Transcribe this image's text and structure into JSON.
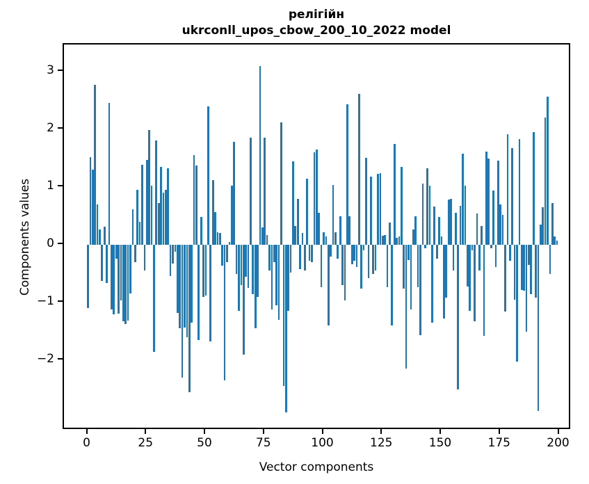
{
  "figure": {
    "title_line1": "релігійн",
    "title_line2": "ukrconll_upos_cbow_200_10_2022 model"
  },
  "chart_data": {
    "type": "bar",
    "title": "релігійн\nukrconll_upos_cbow_200_10_2022 model",
    "xlabel": "Vector components",
    "ylabel": "Components values",
    "bar_color": "#1f77b4",
    "grid": false,
    "legend": null,
    "x_description": "vector component index 0-199",
    "xticks": [
      0,
      25,
      50,
      75,
      100,
      125,
      150,
      175,
      200
    ],
    "yticks": [
      3,
      2,
      1,
      0,
      -1,
      -2
    ],
    "xlim": [
      -10.5,
      210.5
    ],
    "ylim": [
      -3.22,
      3.47
    ],
    "values": [
      -1.1,
      1.52,
      1.3,
      2.77,
      0.7,
      0.26,
      -0.63,
      0.31,
      -0.66,
      2.46,
      -1.12,
      -1.2,
      -0.24,
      -1.19,
      -0.96,
      -1.33,
      -1.37,
      -1.31,
      -0.84,
      0.62,
      -0.3,
      0.95,
      0.4,
      1.38,
      -0.45,
      1.47,
      1.99,
      1.02,
      -1.85,
      1.81,
      0.72,
      1.35,
      0.9,
      0.95,
      1.33,
      -0.54,
      -0.32,
      -0.12,
      -1.18,
      -1.45,
      -2.3,
      -1.43,
      -1.6,
      -2.55,
      -1.35,
      1.55,
      1.37,
      -1.65,
      0.48,
      -0.9,
      -0.88,
      2.4,
      -1.67,
      1.12,
      0.57,
      0.22,
      0.2,
      -0.36,
      -2.35,
      -0.3,
      0.05,
      1.02,
      1.78,
      -0.5,
      -1.15,
      -0.7,
      -1.9,
      -0.55,
      -0.75,
      1.85,
      -0.85,
      -1.45,
      -0.9,
      3.1,
      0.3,
      1.86,
      0.17,
      -0.45,
      -1.12,
      -0.3,
      -1.05,
      -1.3,
      2.12,
      -2.45,
      -2.9,
      -1.15,
      -0.48,
      1.45,
      0.32,
      0.79,
      -0.42,
      0.2,
      -0.44,
      1.14,
      -0.28,
      -0.3,
      1.6,
      1.65,
      0.56,
      -0.74,
      0.22,
      0.14,
      -1.4,
      -0.2,
      1.04,
      0.22,
      -0.24,
      0.5,
      -0.7,
      -0.96,
      2.43,
      0.49,
      -0.34,
      -0.28,
      -0.38,
      2.61,
      -0.76,
      -0.1,
      1.51,
      -0.58,
      1.18,
      -0.5,
      -0.44,
      1.23,
      1.24,
      0.16,
      0.17,
      -0.74,
      0.38,
      -1.4,
      1.75,
      0.12,
      0.15,
      1.35,
      -0.76,
      -2.15,
      -0.26,
      -1.12,
      0.26,
      0.5,
      -0.74,
      -1.57,
      1.06,
      -0.06,
      1.33,
      1.02,
      -1.35,
      0.66,
      -0.24,
      0.48,
      0.14,
      -1.28,
      -0.92,
      0.78,
      0.8,
      -0.45,
      0.56,
      -2.5,
      0.68,
      1.58,
      1.02,
      -0.72,
      -1.15,
      -0.1,
      -1.32,
      0.54,
      -0.44,
      0.32,
      -1.58,
      1.62,
      1.5,
      -0.06,
      0.94,
      -0.38,
      1.46,
      0.7,
      0.52,
      -1.16,
      1.91,
      -0.28,
      1.68,
      -0.95,
      -2.02,
      1.83,
      -0.78,
      -0.8,
      -1.51,
      -0.35,
      -0.85,
      1.95,
      -0.92,
      -2.88,
      0.35,
      0.65,
      2.2,
      2.57,
      -0.5,
      0.72,
      0.15,
      0.07
    ]
  }
}
